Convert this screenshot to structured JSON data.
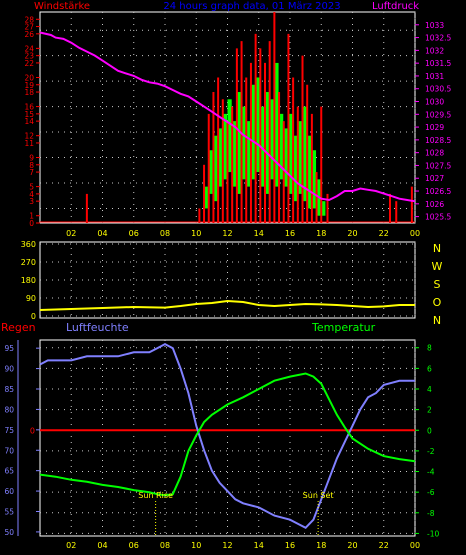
{
  "colors": {
    "background": "#000000",
    "frame": "#ffffff",
    "grid": "#c8c8c8",
    "axis_text": "#ffff00",
    "wind": "#ff0000",
    "gust": "#00ff00",
    "pressure": "#ff00ff",
    "direction": "#ffff00",
    "humidity": "#8080ff",
    "temperature": "#00ff00",
    "rain": "#ff0000",
    "sun_marker": "#ffff00",
    "title": "#0000ff"
  },
  "chart_data": [
    {
      "type": "line",
      "title": "24 hours graph data, 01 März 2023",
      "ylabel": "Windstärke",
      "y2label": "Luftdruck",
      "x_ticks": [
        "02",
        "04",
        "06",
        "08",
        "10",
        "12",
        "14",
        "16",
        "18",
        "20",
        "22",
        "00"
      ],
      "hour_range": [
        0,
        24
      ],
      "ylim": [
        0,
        29
      ],
      "y_ticks": [
        0,
        1,
        3,
        4,
        5,
        7,
        8,
        9,
        11,
        12,
        14,
        15,
        16,
        18,
        19,
        20,
        22,
        23,
        24,
        26,
        27,
        28
      ],
      "y2lim": [
        1025.25,
        1033.5
      ],
      "y2_ticks": [
        "1025.5",
        "1026",
        "1026.5",
        "1027",
        "1027.5",
        "1028",
        "1028.5",
        "1029",
        "1029.5",
        "1030",
        "1030.5",
        "1031",
        "1031.5",
        "1032",
        "1032.5",
        "1033"
      ],
      "grid": true,
      "wind_series": {
        "name": "Windstärke",
        "x": [
          3,
          10.2,
          10.5,
          10.8,
          11.1,
          11.4,
          11.7,
          12.0,
          12.3,
          12.6,
          12.9,
          13.2,
          13.5,
          13.8,
          14.1,
          14.4,
          14.7,
          15.0,
          15.3,
          15.6,
          15.9,
          16.2,
          16.5,
          16.8,
          17.1,
          17.4,
          17.7,
          18.0,
          18.4,
          22.4,
          22.8,
          23.8
        ],
        "values": [
          4,
          2,
          8,
          15,
          18,
          20,
          17,
          14,
          16,
          24,
          25,
          20,
          22,
          26,
          24,
          22,
          25,
          29,
          18,
          14,
          26,
          20,
          16,
          23,
          19,
          15,
          7,
          16,
          4,
          4,
          3,
          5
        ]
      },
      "gust_series": {
        "name": "Windböen",
        "x": [
          10.5,
          10.8,
          11.1,
          11.4,
          11.7,
          12.0,
          12.3,
          12.6,
          12.9,
          13.2,
          13.5,
          13.8,
          14.1,
          14.4,
          14.7,
          15.0,
          15.3,
          15.6,
          15.9,
          16.2,
          16.5,
          16.8,
          17.1,
          17.4,
          17.7,
          18.0
        ],
        "values": [
          5,
          10,
          12,
          13,
          15,
          17,
          14,
          18,
          16,
          14,
          19,
          20,
          16,
          18,
          17,
          22,
          15,
          13,
          15,
          12,
          14,
          16,
          12,
          10,
          6,
          3
        ],
        "lows": [
          2,
          4,
          3,
          5,
          6,
          7,
          5,
          4,
          6,
          5,
          6,
          7,
          5,
          4,
          6,
          5,
          6,
          5,
          4,
          3,
          4,
          3,
          2,
          2,
          1,
          1
        ]
      },
      "pressure_series": {
        "name": "Luftdruck",
        "x": [
          0,
          0.7,
          1,
          1.5,
          2,
          2.5,
          3,
          3.5,
          4,
          4.5,
          5,
          5.5,
          6,
          6.5,
          7,
          7.5,
          8,
          8.5,
          9,
          9.5,
          10,
          10.5,
          11,
          11.5,
          12,
          12.5,
          13,
          13.5,
          14,
          14.5,
          15,
          15.5,
          16,
          16.5,
          17,
          17.5,
          18,
          18.5,
          19,
          19.5,
          20,
          20.5,
          21,
          21.5,
          22,
          22.5,
          23,
          23.5,
          24
        ],
        "values": [
          1032.7,
          1032.6,
          1032.5,
          1032.45,
          1032.3,
          1032.1,
          1031.95,
          1031.8,
          1031.6,
          1031.4,
          1031.2,
          1031.1,
          1031.0,
          1030.85,
          1030.75,
          1030.7,
          1030.6,
          1030.45,
          1030.3,
          1030.2,
          1030.0,
          1029.8,
          1029.6,
          1029.4,
          1029.2,
          1029.0,
          1028.7,
          1028.5,
          1028.3,
          1028.0,
          1027.7,
          1027.4,
          1027.1,
          1026.8,
          1026.6,
          1026.4,
          1026.2,
          1026.15,
          1026.3,
          1026.5,
          1026.5,
          1026.6,
          1026.55,
          1026.5,
          1026.4,
          1026.3,
          1026.2,
          1026.15,
          1026.1
        ]
      }
    },
    {
      "type": "line",
      "y_ticks": [
        "0",
        "90",
        "180",
        "270",
        "360"
      ],
      "ylim": [
        0,
        360
      ],
      "right_labels": [
        "N",
        "W",
        "S",
        "O",
        "N"
      ],
      "x_ticks": [],
      "series": [
        {
          "name": "Windrichtung",
          "x": [
            0,
            2,
            4,
            6,
            8,
            9,
            10,
            11,
            12,
            13,
            14,
            15,
            16,
            17,
            18,
            19,
            20,
            21,
            22,
            23,
            24
          ],
          "values": [
            30,
            35,
            40,
            45,
            42,
            50,
            60,
            65,
            75,
            70,
            55,
            50,
            55,
            60,
            58,
            55,
            50,
            45,
            48,
            55,
            55
          ]
        }
      ]
    },
    {
      "type": "line",
      "left_label": "Regen",
      "humidity_label": "Luftfeuchte",
      "temperature_label": "Temperatur",
      "x_ticks": [
        "02",
        "04",
        "06",
        "08",
        "10",
        "12",
        "14",
        "16",
        "18",
        "20",
        "22",
        "00"
      ],
      "humidity_ticks": [
        "50",
        "55",
        "60",
        "65",
        "70",
        "75",
        "80",
        "85",
        "90",
        "95"
      ],
      "ylim_humidity": [
        49,
        97
      ],
      "temperature_ticks": [
        "-10",
        "-8",
        "-6",
        "-4",
        "-2",
        "0",
        "2",
        "4",
        "6",
        "8"
      ],
      "ylim_temperature": [
        -10.25,
        8.75
      ],
      "rain_label": "0",
      "rain_value": 0,
      "grid": true,
      "series": [
        {
          "name": "Luftfeuchte",
          "x": [
            0,
            0.5,
            1,
            2,
            3,
            4,
            5,
            6,
            7,
            7.5,
            8,
            8.5,
            9,
            9.5,
            10,
            10.5,
            11,
            11.5,
            12,
            12.5,
            13,
            14,
            15,
            16,
            16.5,
            17,
            17.5,
            18,
            18.5,
            19,
            19.5,
            20,
            20.5,
            21,
            21.5,
            22,
            23,
            24
          ],
          "values": [
            91,
            92,
            92,
            92,
            93,
            93,
            93,
            94,
            94,
            95,
            96,
            95,
            90,
            84,
            76,
            70,
            65,
            62,
            60,
            58,
            57,
            56,
            54,
            53,
            52,
            51,
            53,
            58,
            63,
            68,
            72,
            76,
            80,
            83,
            84,
            86,
            87,
            87
          ]
        },
        {
          "name": "Temperatur",
          "x": [
            0,
            1,
            2,
            3,
            4,
            5,
            6,
            7,
            7.5,
            8,
            8.5,
            9,
            9.5,
            10,
            10.5,
            11,
            12,
            13,
            14,
            15,
            16,
            17,
            17.5,
            18,
            18.5,
            19,
            19.5,
            20,
            21,
            22,
            23,
            24
          ],
          "values": [
            -4.3,
            -4.5,
            -4.8,
            -5.0,
            -5.3,
            -5.5,
            -5.8,
            -6.0,
            -6.2,
            -6.3,
            -6.2,
            -4.5,
            -2.0,
            -0.5,
            0.8,
            1.5,
            2.5,
            3.2,
            4.0,
            4.8,
            5.2,
            5.5,
            5.2,
            4.5,
            3.0,
            1.5,
            0.3,
            -0.8,
            -1.8,
            -2.5,
            -2.8,
            -3.0
          ]
        }
      ],
      "annotations": [
        {
          "text": "Sun Rise",
          "x": 7.4
        },
        {
          "text": "Sun Set",
          "x": 17.8
        }
      ]
    }
  ]
}
